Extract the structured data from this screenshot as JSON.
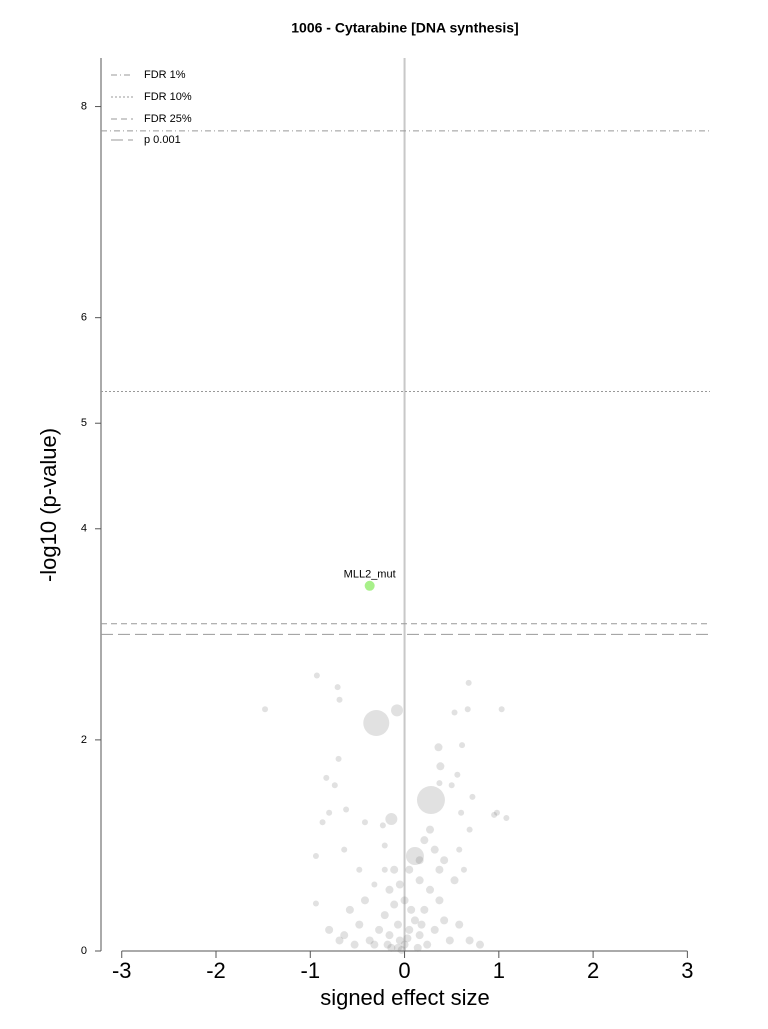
{
  "chart_data": {
    "type": "scatter",
    "title": "1006 - Cytarabine [DNA synthesis]",
    "xlabel": "signed effect size",
    "ylabel": "-log10 (p-value)",
    "xlim": [
      -3.22,
      3.24
    ],
    "ylim": [
      0,
      8.46
    ],
    "xticks": [
      -3,
      -2,
      -1,
      0,
      1,
      2,
      3
    ],
    "yticks": [
      0,
      2,
      4,
      5,
      6,
      8
    ],
    "zero_line": true,
    "legend": "top-left",
    "thresholds": [
      {
        "name": "FDR 1%",
        "value": 7.77,
        "dash": "6 3 1 3"
      },
      {
        "name": "FDR 10%",
        "value": 5.3,
        "dash": "2 2"
      },
      {
        "name": "FDR 25%",
        "value": 3.1,
        "dash": "6 4"
      },
      {
        "name": "p 0.001",
        "value": 3.0,
        "dash": "12 5"
      }
    ],
    "series": [
      {
        "color": "#777777",
        "x": [
          -0.3,
          0.28,
          0.11,
          -0.08,
          -0.14,
          -0.93,
          -1.48,
          -0.71,
          -0.69,
          0.68,
          1.03,
          0.67,
          0.53,
          0.61,
          0.36,
          -0.7,
          -0.83,
          -0.74,
          0.38,
          0.56,
          0.5,
          0.72,
          0.37,
          -0.8,
          -0.62,
          -0.87,
          0.98,
          1.08,
          0.95,
          -0.42,
          -0.23,
          -0.94,
          -0.94,
          0.6,
          0.69,
          0.58,
          0.63,
          -0.64,
          -0.48,
          -0.32,
          -0.21,
          -0.21,
          -0.05,
          0.0,
          0.05,
          -0.07,
          0.11,
          0.16,
          -0.16,
          0.21,
          0.27,
          0.16,
          -0.11,
          0.0,
          0.07,
          -0.21,
          -0.27,
          -0.32,
          -0.37,
          -0.48,
          -0.58,
          -0.64,
          0.37,
          0.42,
          0.32,
          0.48,
          0.53,
          0.42,
          0.32,
          0.27,
          0.21,
          0.37,
          0.16,
          0.05,
          -0.05,
          -0.11,
          -0.16,
          -0.42,
          -0.53,
          -0.69,
          0.58,
          0.69,
          0.8,
          -0.8,
          -0.14,
          -0.03,
          0.14,
          0.24,
          0.03,
          -0.18,
          -0.07,
          0.18
        ],
        "values": [
          2.16,
          1.43,
          0.9,
          2.28,
          1.25,
          2.61,
          2.29,
          2.5,
          2.38,
          2.54,
          2.29,
          2.29,
          2.26,
          1.95,
          1.93,
          1.82,
          1.64,
          1.57,
          1.75,
          1.67,
          1.57,
          1.46,
          1.59,
          1.31,
          1.34,
          1.22,
          1.31,
          1.26,
          1.29,
          1.22,
          1.19,
          0.9,
          0.45,
          1.31,
          1.15,
          0.96,
          0.77,
          0.96,
          0.77,
          0.63,
          1.0,
          0.77,
          0.1,
          0.06,
          0.2,
          0.25,
          0.29,
          0.15,
          0.15,
          0.39,
          0.58,
          0.67,
          0.44,
          0.48,
          0.39,
          0.34,
          0.2,
          0.06,
          0.1,
          0.25,
          0.39,
          0.15,
          0.48,
          0.29,
          0.2,
          0.1,
          0.67,
          0.86,
          0.96,
          1.15,
          1.05,
          0.77,
          0.86,
          0.77,
          0.63,
          0.77,
          0.58,
          0.48,
          0.06,
          0.1,
          0.25,
          0.1,
          0.06,
          0.2,
          0.03,
          0.01,
          0.03,
          0.06,
          0.12,
          0.06,
          0.03,
          0.25
        ],
        "sizes": [
          13,
          14,
          9,
          6,
          6,
          3,
          3,
          3,
          3,
          3,
          3,
          3,
          3,
          3,
          4,
          3,
          3,
          3,
          4,
          3,
          3,
          3,
          3,
          3,
          3,
          3,
          3,
          3,
          3,
          3,
          3,
          3,
          3,
          3,
          3,
          3,
          3,
          3,
          3,
          3,
          3,
          3,
          4,
          4,
          4,
          4,
          4,
          4,
          4,
          4,
          4,
          4,
          4,
          4,
          4,
          4,
          4,
          4,
          4,
          4,
          4,
          4,
          4,
          4,
          4,
          4,
          4,
          4,
          4,
          4,
          4,
          4,
          4,
          4,
          4,
          4,
          4,
          4,
          4,
          4,
          4,
          4,
          4,
          4,
          4,
          4,
          4,
          4,
          4,
          4,
          4,
          4
        ]
      },
      {
        "color": "#a8f08a",
        "x": [
          -0.37
        ],
        "values": [
          3.46
        ],
        "sizes": [
          5
        ],
        "labels": [
          "MLL2_mut"
        ]
      }
    ]
  }
}
